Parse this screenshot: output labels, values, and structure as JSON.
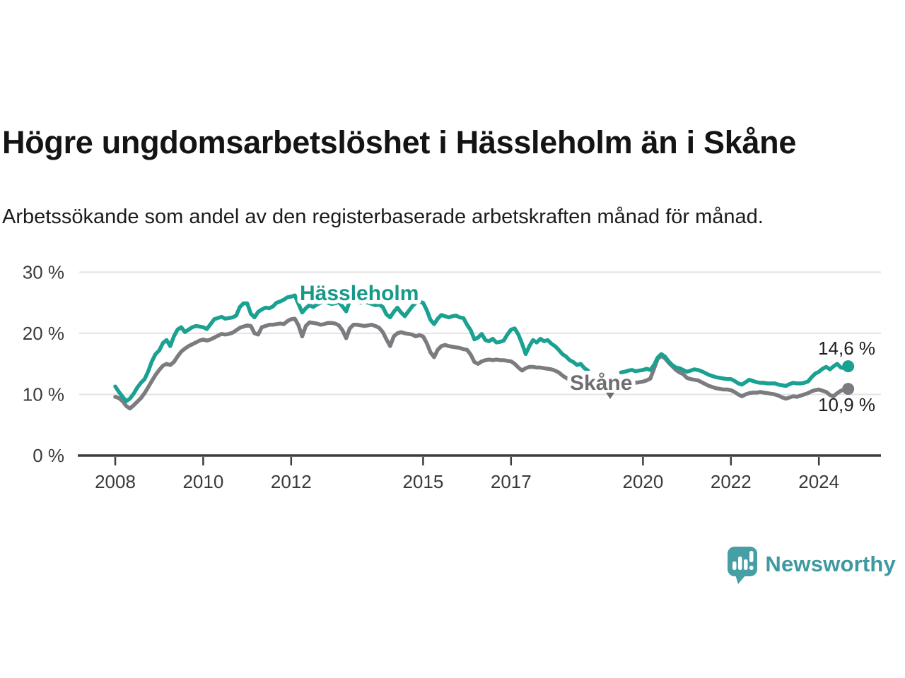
{
  "header": {
    "title": "Högre ungdomsarbetslöshet i Hässleholm än i Skåne",
    "subtitle": "Arbetssökande som andel av den registerbaserade arbetskraften månad för månad."
  },
  "chart_data": {
    "type": "line",
    "unit": "%",
    "frequency": "monthly",
    "start": {
      "year": 2008,
      "month": 1
    },
    "grid": "horizontal",
    "legend_position": "inline-labels",
    "ylim": [
      0,
      30
    ],
    "y_ticks": [
      {
        "value": 0,
        "label": "0 %"
      },
      {
        "value": 10,
        "label": "10 %"
      },
      {
        "value": 20,
        "label": "20 %"
      },
      {
        "value": 30,
        "label": "30 %"
      }
    ],
    "x_ticks": [
      {
        "year": 2008,
        "label": "2008"
      },
      {
        "year": 2010,
        "label": "2010"
      },
      {
        "year": 2012,
        "label": "2012"
      },
      {
        "year": 2015,
        "label": "2015"
      },
      {
        "year": 2017,
        "label": "2017"
      },
      {
        "year": 2020,
        "label": "2020"
      },
      {
        "year": 2022,
        "label": "2022"
      },
      {
        "year": 2024,
        "label": "2024"
      }
    ],
    "series": [
      {
        "name": "Hässleholm",
        "color": "#1aa191",
        "label_color": "#17998a",
        "end_label": "14,6 %",
        "end_value": 14.6,
        "values": [
          11.3,
          10.4,
          9.6,
          8.9,
          9.3,
          10.1,
          11.1,
          11.9,
          12.5,
          13.8,
          15.4,
          16.6,
          17.2,
          18.4,
          18.9,
          17.9,
          19.5,
          20.6,
          21.0,
          20.2,
          20.6,
          21.0,
          21.2,
          21.1,
          21.0,
          20.7,
          21.5,
          22.3,
          22.5,
          22.7,
          22.4,
          22.5,
          22.6,
          22.9,
          24.3,
          24.9,
          24.9,
          23.2,
          22.6,
          23.5,
          23.9,
          24.2,
          24.1,
          24.4,
          25.0,
          25.2,
          25.5,
          25.9,
          26.0,
          26.2,
          24.8,
          23.4,
          24.1,
          24.6,
          24.3,
          24.7,
          25.0,
          25.2,
          25.0,
          24.8,
          24.9,
          25.1,
          24.4,
          23.6,
          25.3,
          26.0,
          25.5,
          25.0,
          25.2,
          25.0,
          24.8,
          24.6,
          24.7,
          24.3,
          23.1,
          22.6,
          23.5,
          24.2,
          23.4,
          22.8,
          23.6,
          24.4,
          25.0,
          25.2,
          25.0,
          23.8,
          22.2,
          21.5,
          22.4,
          23.0,
          22.8,
          22.6,
          22.8,
          22.9,
          22.6,
          22.5,
          21.4,
          20.5,
          19.0,
          19.3,
          19.9,
          18.9,
          18.7,
          19.1,
          18.5,
          18.6,
          18.8,
          19.8,
          20.6,
          20.8,
          19.8,
          18.3,
          16.6,
          17.9,
          18.9,
          18.5,
          19.1,
          18.7,
          18.9,
          18.3,
          17.9,
          17.3,
          16.6,
          16.2,
          15.6,
          15.3,
          14.8,
          15.0,
          14.3,
          13.9,
          null,
          null,
          null,
          null,
          null,
          null,
          null,
          null,
          13.6,
          13.7,
          13.9,
          14.0,
          13.8,
          13.9,
          14.0,
          14.2,
          14.0,
          14.8,
          16.0,
          16.6,
          16.2,
          15.4,
          14.8,
          14.4,
          14.3,
          14.0,
          13.7,
          13.9,
          14.1,
          14.0,
          13.8,
          13.5,
          13.2,
          13.0,
          12.8,
          12.7,
          12.6,
          12.5,
          12.5,
          12.2,
          11.8,
          11.6,
          12.0,
          12.4,
          12.2,
          12.0,
          11.9,
          11.9,
          11.8,
          11.8,
          11.8,
          11.6,
          11.5,
          11.4,
          11.7,
          11.9,
          11.8,
          11.8,
          11.9,
          12.1,
          12.8,
          13.4,
          13.7,
          14.2,
          14.5,
          14.1,
          14.6,
          15.0,
          14.4,
          14.3,
          14.6
        ]
      },
      {
        "name": "Skåne",
        "color": "#7c7c80",
        "label_color": "#6e6e72",
        "end_label": "10,9 %",
        "end_value": 10.9,
        "values": [
          9.6,
          9.4,
          8.9,
          8.1,
          7.7,
          8.2,
          8.8,
          9.4,
          10.2,
          11.2,
          12.2,
          13.2,
          14.0,
          14.7,
          15.0,
          14.8,
          15.3,
          16.2,
          17.0,
          17.5,
          17.9,
          18.2,
          18.5,
          18.8,
          19.0,
          18.8,
          19.0,
          19.3,
          19.6,
          19.9,
          19.8,
          19.9,
          20.1,
          20.5,
          20.9,
          21.1,
          21.3,
          21.2,
          20.0,
          19.8,
          21.0,
          21.2,
          21.4,
          21.4,
          21.5,
          21.6,
          21.5,
          22.0,
          22.3,
          22.4,
          21.3,
          19.5,
          21.2,
          21.8,
          21.7,
          21.6,
          21.4,
          21.5,
          21.7,
          21.7,
          21.6,
          21.3,
          20.5,
          19.2,
          20.8,
          21.4,
          21.4,
          21.3,
          21.2,
          21.3,
          21.4,
          21.2,
          20.9,
          20.2,
          19.0,
          17.9,
          19.5,
          20.0,
          20.2,
          20.0,
          19.9,
          19.8,
          19.5,
          19.7,
          19.5,
          18.4,
          16.9,
          16.1,
          17.3,
          17.9,
          18.1,
          17.9,
          17.8,
          17.7,
          17.6,
          17.4,
          17.3,
          16.5,
          15.3,
          15.0,
          15.4,
          15.6,
          15.7,
          15.6,
          15.7,
          15.6,
          15.6,
          15.5,
          15.4,
          15.0,
          14.4,
          13.9,
          14.3,
          14.5,
          14.5,
          14.4,
          14.4,
          14.3,
          14.2,
          14.1,
          13.9,
          13.6,
          13.1,
          12.7,
          12.4,
          12.3,
          12.2,
          12.3,
          12.2,
          12.1,
          null,
          null,
          null,
          null,
          null,
          null,
          null,
          null,
          11.8,
          11.7,
          11.9,
          12.0,
          11.9,
          12.0,
          12.1,
          12.3,
          12.6,
          14.2,
          15.8,
          16.3,
          15.9,
          15.2,
          14.6,
          14.0,
          13.6,
          13.3,
          12.7,
          12.5,
          12.4,
          12.3,
          12.0,
          11.7,
          11.4,
          11.2,
          11.0,
          10.9,
          10.8,
          10.8,
          10.7,
          10.4,
          10.0,
          9.7,
          10.0,
          10.2,
          10.3,
          10.3,
          10.4,
          10.3,
          10.2,
          10.1,
          10.0,
          9.8,
          9.5,
          9.3,
          9.5,
          9.7,
          9.6,
          9.8,
          10.0,
          10.2,
          10.5,
          10.7,
          10.8,
          10.6,
          10.4,
          9.9,
          9.7,
          10.2,
          10.6,
          10.8,
          10.9
        ]
      }
    ],
    "colors": {
      "grid": "#e3e3e3",
      "axis": "#3d3d3d",
      "tick_text": "#3a3a3a",
      "end_label_text": "#1f1f1f"
    }
  },
  "branding": {
    "logo_text": "Newsworthy",
    "logo_color": "#459fa4",
    "logo_text_color": "#3f99a0",
    "logo_icon": "bar-chart-speech-bubble"
  }
}
